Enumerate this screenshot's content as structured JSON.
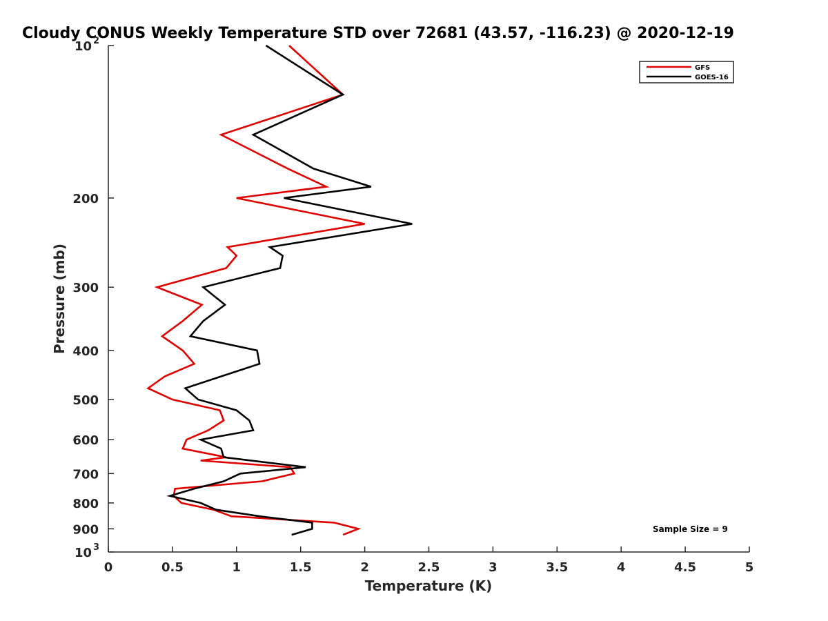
{
  "chart_data": {
    "type": "line",
    "title": "Cloudy CONUS Weekly Temperature STD over 72681 (43.57, -116.23) @ 2020-12-19",
    "xlabel": "Temperature (K)",
    "ylabel": "Pressure (mb)",
    "xlim": [
      0,
      5
    ],
    "ylim": [
      100,
      1000
    ],
    "y_scale": "log",
    "y_reversed": true,
    "grid": false,
    "legend_position": "top-right",
    "x_ticks": [
      "0",
      "0.5",
      "1",
      "1.5",
      "2",
      "2.5",
      "3",
      "3.5",
      "4",
      "4.5",
      "5"
    ],
    "y_ticks": [
      {
        "value": 100,
        "base": "10",
        "exp": "2"
      },
      {
        "value": 200,
        "label": "200"
      },
      {
        "value": 300,
        "label": "300"
      },
      {
        "value": 400,
        "label": "400"
      },
      {
        "value": 500,
        "label": "500"
      },
      {
        "value": 600,
        "label": "600"
      },
      {
        "value": 700,
        "label": "700"
      },
      {
        "value": 800,
        "label": "800"
      },
      {
        "value": 900,
        "label": "900"
      },
      {
        "value": 1000,
        "base": "10",
        "exp": "3"
      }
    ],
    "annotation": "Sample Size = 9",
    "series": [
      {
        "name": "GFS",
        "color": "#e00000",
        "points": [
          [
            1.41,
            100
          ],
          [
            1.83,
            125
          ],
          [
            0.88,
            150
          ],
          [
            1.4,
            175
          ],
          [
            1.7,
            190
          ],
          [
            1.0,
            200
          ],
          [
            2.0,
            225
          ],
          [
            0.93,
            250
          ],
          [
            1.0,
            260
          ],
          [
            0.92,
            275
          ],
          [
            0.38,
            300
          ],
          [
            0.73,
            325
          ],
          [
            0.58,
            350
          ],
          [
            0.42,
            375
          ],
          [
            0.58,
            400
          ],
          [
            0.67,
            425
          ],
          [
            0.44,
            450
          ],
          [
            0.31,
            475
          ],
          [
            0.5,
            500
          ],
          [
            0.87,
            525
          ],
          [
            0.9,
            550
          ],
          [
            0.78,
            575
          ],
          [
            0.61,
            600
          ],
          [
            0.58,
            625
          ],
          [
            0.92,
            650
          ],
          [
            0.72,
            660
          ],
          [
            1.42,
            680
          ],
          [
            1.45,
            700
          ],
          [
            1.2,
            725
          ],
          [
            0.52,
            750
          ],
          [
            0.51,
            775
          ],
          [
            0.57,
            800
          ],
          [
            0.82,
            825
          ],
          [
            0.96,
            850
          ],
          [
            1.76,
            875
          ],
          [
            1.95,
            900
          ],
          [
            1.83,
            925
          ]
        ]
      },
      {
        "name": "GOES-16",
        "color": "#000000",
        "points": [
          [
            1.23,
            100
          ],
          [
            1.83,
            125
          ],
          [
            1.13,
            150
          ],
          [
            1.6,
            175
          ],
          [
            2.05,
            190
          ],
          [
            1.37,
            200
          ],
          [
            2.37,
            225
          ],
          [
            1.26,
            250
          ],
          [
            1.36,
            260
          ],
          [
            1.34,
            275
          ],
          [
            0.74,
            300
          ],
          [
            0.91,
            325
          ],
          [
            0.74,
            350
          ],
          [
            0.64,
            375
          ],
          [
            1.16,
            400
          ],
          [
            1.18,
            425
          ],
          [
            0.88,
            450
          ],
          [
            0.6,
            475
          ],
          [
            0.7,
            500
          ],
          [
            1.0,
            525
          ],
          [
            1.1,
            550
          ],
          [
            1.13,
            575
          ],
          [
            0.72,
            600
          ],
          [
            0.88,
            625
          ],
          [
            0.9,
            650
          ],
          [
            1.54,
            680
          ],
          [
            1.03,
            700
          ],
          [
            0.9,
            725
          ],
          [
            0.67,
            750
          ],
          [
            0.48,
            775
          ],
          [
            0.72,
            800
          ],
          [
            0.84,
            825
          ],
          [
            1.18,
            850
          ],
          [
            1.59,
            875
          ],
          [
            1.59,
            900
          ],
          [
            1.43,
            925
          ]
        ]
      }
    ]
  }
}
